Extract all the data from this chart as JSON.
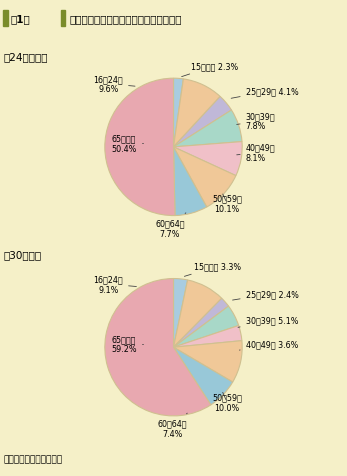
{
  "background_color": "#f5f0c8",
  "title_bar_color": "#7a8c2a",
  "title_text": "第1図　年齢層別死者数の構成率（平成２２年）",
  "title_label1": "第1図",
  "title_label2": "年齢層別死者数の構成率（平成２２年）",
  "chart1_label": "⓪24時間死者",
  "chart2_label": "⓪30日死者",
  "note": "注　警察庁資料による。",
  "separator_color": "#d4d060",
  "pie1": {
    "labels": [
      "15歳以下",
      "16～24歳",
      "25～29歳",
      "30～39歳",
      "40～49歳",
      "50～59歳",
      "60～64歳",
      "65歳以上"
    ],
    "values": [
      2.3,
      9.6,
      4.1,
      7.8,
      8.1,
      10.1,
      7.7,
      50.4
    ],
    "colors": [
      "#a8cce0",
      "#f0c898",
      "#c0b8d8",
      "#a8d8c8",
      "#f0c0c8",
      "#f0c898",
      "#98c8d8",
      "#e8a8b0"
    ],
    "pct_labels": [
      "15歳以下 2.3%",
      "16～24歳\n9.6%",
      "25～29歳 4.1%",
      "30～39歳\n7.8%",
      "40～49歳\n8.1%",
      "50～59歳\n10.1%",
      "60～64歳\n7.7%",
      "65歳以上\n50.4%"
    ]
  },
  "pie2": {
    "labels": [
      "15歳以下",
      "16～24歳",
      "25～29歳",
      "30～39歳",
      "40～49歳",
      "50～59歳",
      "60～64歳",
      "65歳以上"
    ],
    "values": [
      3.3,
      9.1,
      2.4,
      5.1,
      3.6,
      10.0,
      7.4,
      59.2
    ],
    "colors": [
      "#a8cce0",
      "#f0c898",
      "#c0b8d8",
      "#a8d8c8",
      "#f0c0c8",
      "#f0c898",
      "#98c8d8",
      "#e8a8b0"
    ],
    "pct_labels": [
      "15歳以下 3.3%",
      "16～24歳\n9.1%",
      "25～29歳 2.4%",
      "30～39歳 5.1%",
      "40～49歳 3.6%",
      "50～59歳\n10.0%",
      "60～64歳\n7.4%",
      "65歳以上\n59.2%"
    ]
  }
}
